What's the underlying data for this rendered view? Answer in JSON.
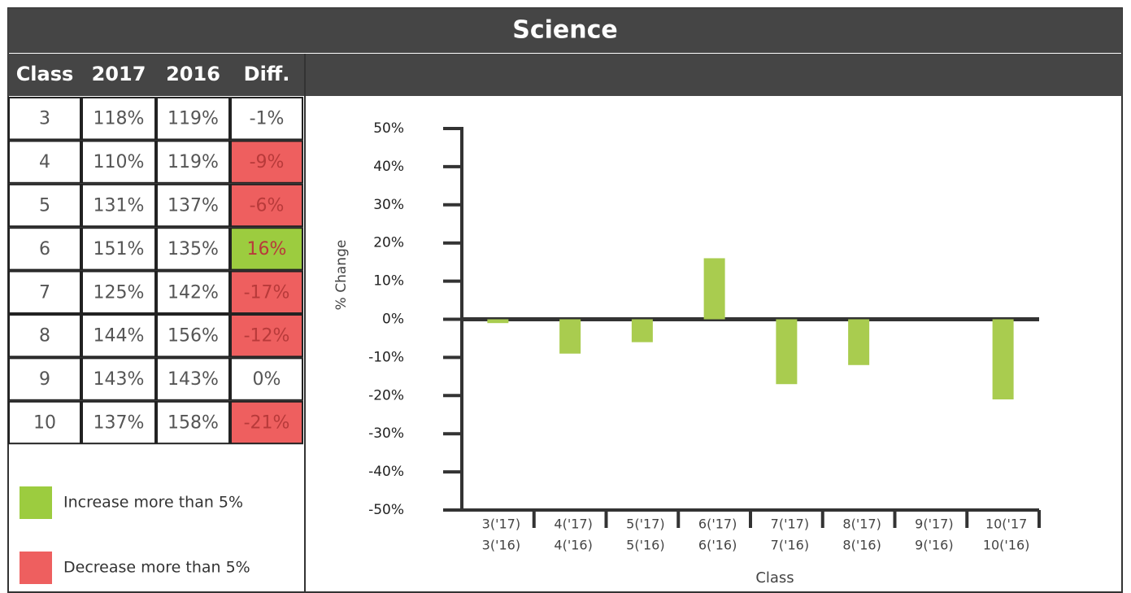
{
  "title": "Science",
  "table": {
    "header": [
      "Class",
      "2017",
      "2016",
      "Diff."
    ],
    "rows": [
      [
        "3",
        "118%",
        "119%",
        "-1%"
      ],
      [
        "4",
        "110%",
        "119%",
        "-9%"
      ],
      [
        "5",
        "131%",
        "137%",
        "-6%"
      ],
      [
        "6",
        "151%",
        "135%",
        "16%"
      ],
      [
        "7",
        "125%",
        "142%",
        "-17%"
      ],
      [
        "8",
        "144%",
        "156%",
        "-12%"
      ],
      [
        "9",
        "143%",
        "143%",
        "0%"
      ],
      [
        "10",
        "137%",
        "158%",
        "-21%"
      ]
    ],
    "diff_colors": [
      null,
      "#ee5f5f",
      "#ee5f5f",
      "#9ccc3f",
      "#ee5f5f",
      "#ee5f5f",
      null,
      "#ee5f5f"
    ]
  },
  "legend": [
    {
      "label": "Increase more than 5%",
      "color": "#9ccc3f"
    },
    {
      "label": "Decrease more than 5%",
      "color": "#ee5f5f"
    }
  ],
  "chart_data": {
    "type": "bar",
    "x_label": "Class",
    "y_label": "% Change",
    "categories": [
      [
        "3('17)",
        "3('16)"
      ],
      [
        "4('17)",
        "4('16)"
      ],
      [
        "5('17)",
        "5('16)"
      ],
      [
        "6('17)",
        "6('16)"
      ],
      [
        "7('17)",
        "7('16)"
      ],
      [
        "8('17)",
        "8('16)"
      ],
      [
        "9('17)",
        "9('16)"
      ],
      [
        "10('17",
        "10('16)"
      ]
    ],
    "values": [
      -1,
      -9,
      -6,
      16,
      -17,
      -12,
      0,
      -21
    ],
    "color": "#a9cc4f",
    "ylim": [
      -50,
      50
    ],
    "yticks": [
      {
        "value": -50,
        "label": "-50%"
      },
      {
        "value": -40,
        "label": "-40%"
      },
      {
        "value": -30,
        "label": "-30%"
      },
      {
        "value": -20,
        "label": "-20%"
      },
      {
        "value": -10,
        "label": "-10%"
      },
      {
        "value": 0,
        "label": "0%"
      },
      {
        "value": 10,
        "label": "10%"
      },
      {
        "value": 20,
        "label": "20%"
      },
      {
        "value": 30,
        "label": "30%"
      },
      {
        "value": 40,
        "label": "40%"
      },
      {
        "value": 50,
        "label": "50%"
      }
    ]
  }
}
